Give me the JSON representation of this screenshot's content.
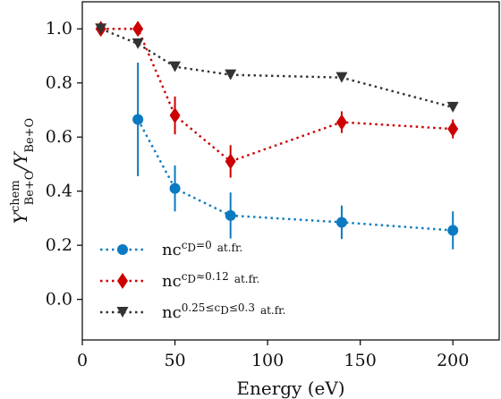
{
  "chart_data": {
    "type": "line",
    "xlabel": "Energy (eV)",
    "ylabel": {
      "y1_base": "Y",
      "y1_sup": "chem",
      "y1_sub": "Be+O",
      "slash": "/",
      "y2_base": "Y",
      "y2_sub": "Be+O"
    },
    "xlim": [
      0,
      225
    ],
    "ylim": [
      -0.15,
      1.1
    ],
    "xticks": [
      0,
      50,
      100,
      150,
      200
    ],
    "xtick_labels": [
      "0",
      "50",
      "100",
      "150",
      "200"
    ],
    "yticks": [
      0.0,
      0.2,
      0.4,
      0.6,
      0.8,
      1.0
    ],
    "ytick_labels": [
      "0.0",
      "0.2",
      "0.4",
      "0.6",
      "0.8",
      "1.0"
    ],
    "grid": false,
    "legend_position": "bottom-left",
    "series": [
      {
        "name_pre": "nc",
        "name_sup_base": "c",
        "name_sup_sub": "D",
        "name_sup_post": "=0",
        "name_unit": "at.fr.",
        "color": "#0a7ac2",
        "marker": "circle",
        "x": [
          30,
          50,
          80,
          140,
          200
        ],
        "y": [
          0.665,
          0.41,
          0.31,
          0.285,
          0.255
        ],
        "err": [
          0.21,
          0.085,
          0.085,
          0.062,
          0.07
        ]
      },
      {
        "name_pre": "nc",
        "name_sup_base": "c",
        "name_sup_sub": "D",
        "name_sup_post": "≈0.12",
        "name_unit": "at.fr.",
        "color": "#cc0000",
        "marker": "diamond",
        "x": [
          10,
          30,
          50,
          80,
          140,
          200
        ],
        "y": [
          1.0,
          1.0,
          0.68,
          0.51,
          0.655,
          0.63
        ],
        "err": [
          0.0,
          0.0,
          0.07,
          0.06,
          0.04,
          0.035
        ]
      },
      {
        "name_pre": "nc",
        "name_sup_base": "0.25≤c",
        "name_sup_sub": "D",
        "name_sup_post": "≤0.3",
        "name_unit": "at.fr.",
        "color": "#333333",
        "marker": "triangle-down",
        "x": [
          10,
          30,
          50,
          80,
          140,
          200
        ],
        "y": [
          1.0,
          0.945,
          0.86,
          0.83,
          0.82,
          0.71
        ],
        "err": [
          0,
          0,
          0,
          0,
          0,
          0
        ]
      }
    ]
  }
}
